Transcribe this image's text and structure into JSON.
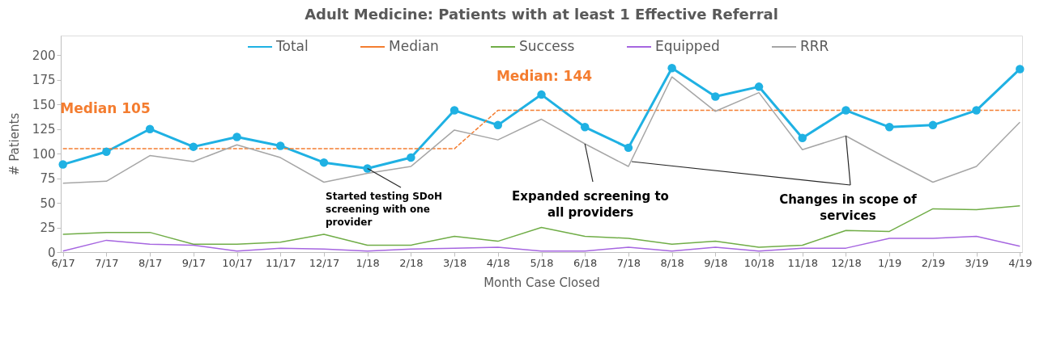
{
  "chart_data": {
    "type": "line",
    "title": "Adult Medicine: Patients with at least 1 Effective Referral",
    "xlabel": "Month Case Closed",
    "ylabel": "# Patients",
    "categories": [
      "6/17",
      "7/17",
      "8/17",
      "9/17",
      "10/17",
      "11/17",
      "12/17",
      "1/18",
      "2/18",
      "3/18",
      "4/18",
      "5/18",
      "6/18",
      "7/18",
      "8/18",
      "9/18",
      "10/18",
      "11/18",
      "12/18",
      "1/19",
      "2/19",
      "3/19",
      "4/19"
    ],
    "series": [
      {
        "name": "Total",
        "color": "#1fb1e3",
        "marker": "circle",
        "line_style": "solid",
        "values": [
          89,
          102,
          125,
          107,
          117,
          108,
          91,
          85,
          96,
          144,
          129,
          160,
          127,
          106,
          187,
          158,
          168,
          116,
          144,
          127,
          129,
          144,
          186
        ]
      },
      {
        "name": "Median",
        "color": "#f47d30",
        "marker": "none",
        "line_style": "dashed",
        "values": [
          105,
          105,
          105,
          105,
          105,
          105,
          105,
          105,
          105,
          105,
          144,
          144,
          144,
          144,
          144,
          144,
          144,
          144,
          144,
          144,
          144,
          144,
          144
        ]
      },
      {
        "name": "Success",
        "color": "#70ad47",
        "marker": "none",
        "line_style": "solid",
        "values": [
          18,
          20,
          20,
          8,
          8,
          10,
          18,
          7,
          7,
          16,
          11,
          25,
          16,
          14,
          8,
          11,
          5,
          7,
          22,
          21,
          44,
          43,
          47
        ]
      },
      {
        "name": "Equipped",
        "color": "#a666e0",
        "marker": "none",
        "line_style": "solid",
        "values": [
          1,
          12,
          8,
          7,
          1,
          4,
          3,
          1,
          3,
          4,
          5,
          1,
          1,
          5,
          1,
          5,
          1,
          4,
          4,
          14,
          14,
          16,
          6
        ]
      },
      {
        "name": "RRR",
        "color": "#a6a6a6",
        "marker": "none",
        "line_style": "solid",
        "values": [
          70,
          72,
          98,
          92,
          109,
          96,
          71,
          80,
          87,
          124,
          114,
          135,
          110,
          87,
          178,
          143,
          162,
          104,
          118,
          94,
          71,
          87,
          132
        ]
      }
    ],
    "ylim": [
      0,
      220
    ],
    "yticks": [
      0,
      25,
      50,
      75,
      100,
      125,
      150,
      175,
      200
    ],
    "grid": false,
    "legend": "top",
    "annotations": [
      "Median 105",
      "Median: 144",
      {
        "text": "Started testing SDoH screening with one provider",
        "x": "1/18",
        "y": 85
      },
      {
        "text": "Expanded screening to all providers",
        "x": "6/18",
        "y": 110
      },
      {
        "text": "Changes in scope of services",
        "x": "12/18",
        "y": 118
      }
    ]
  }
}
